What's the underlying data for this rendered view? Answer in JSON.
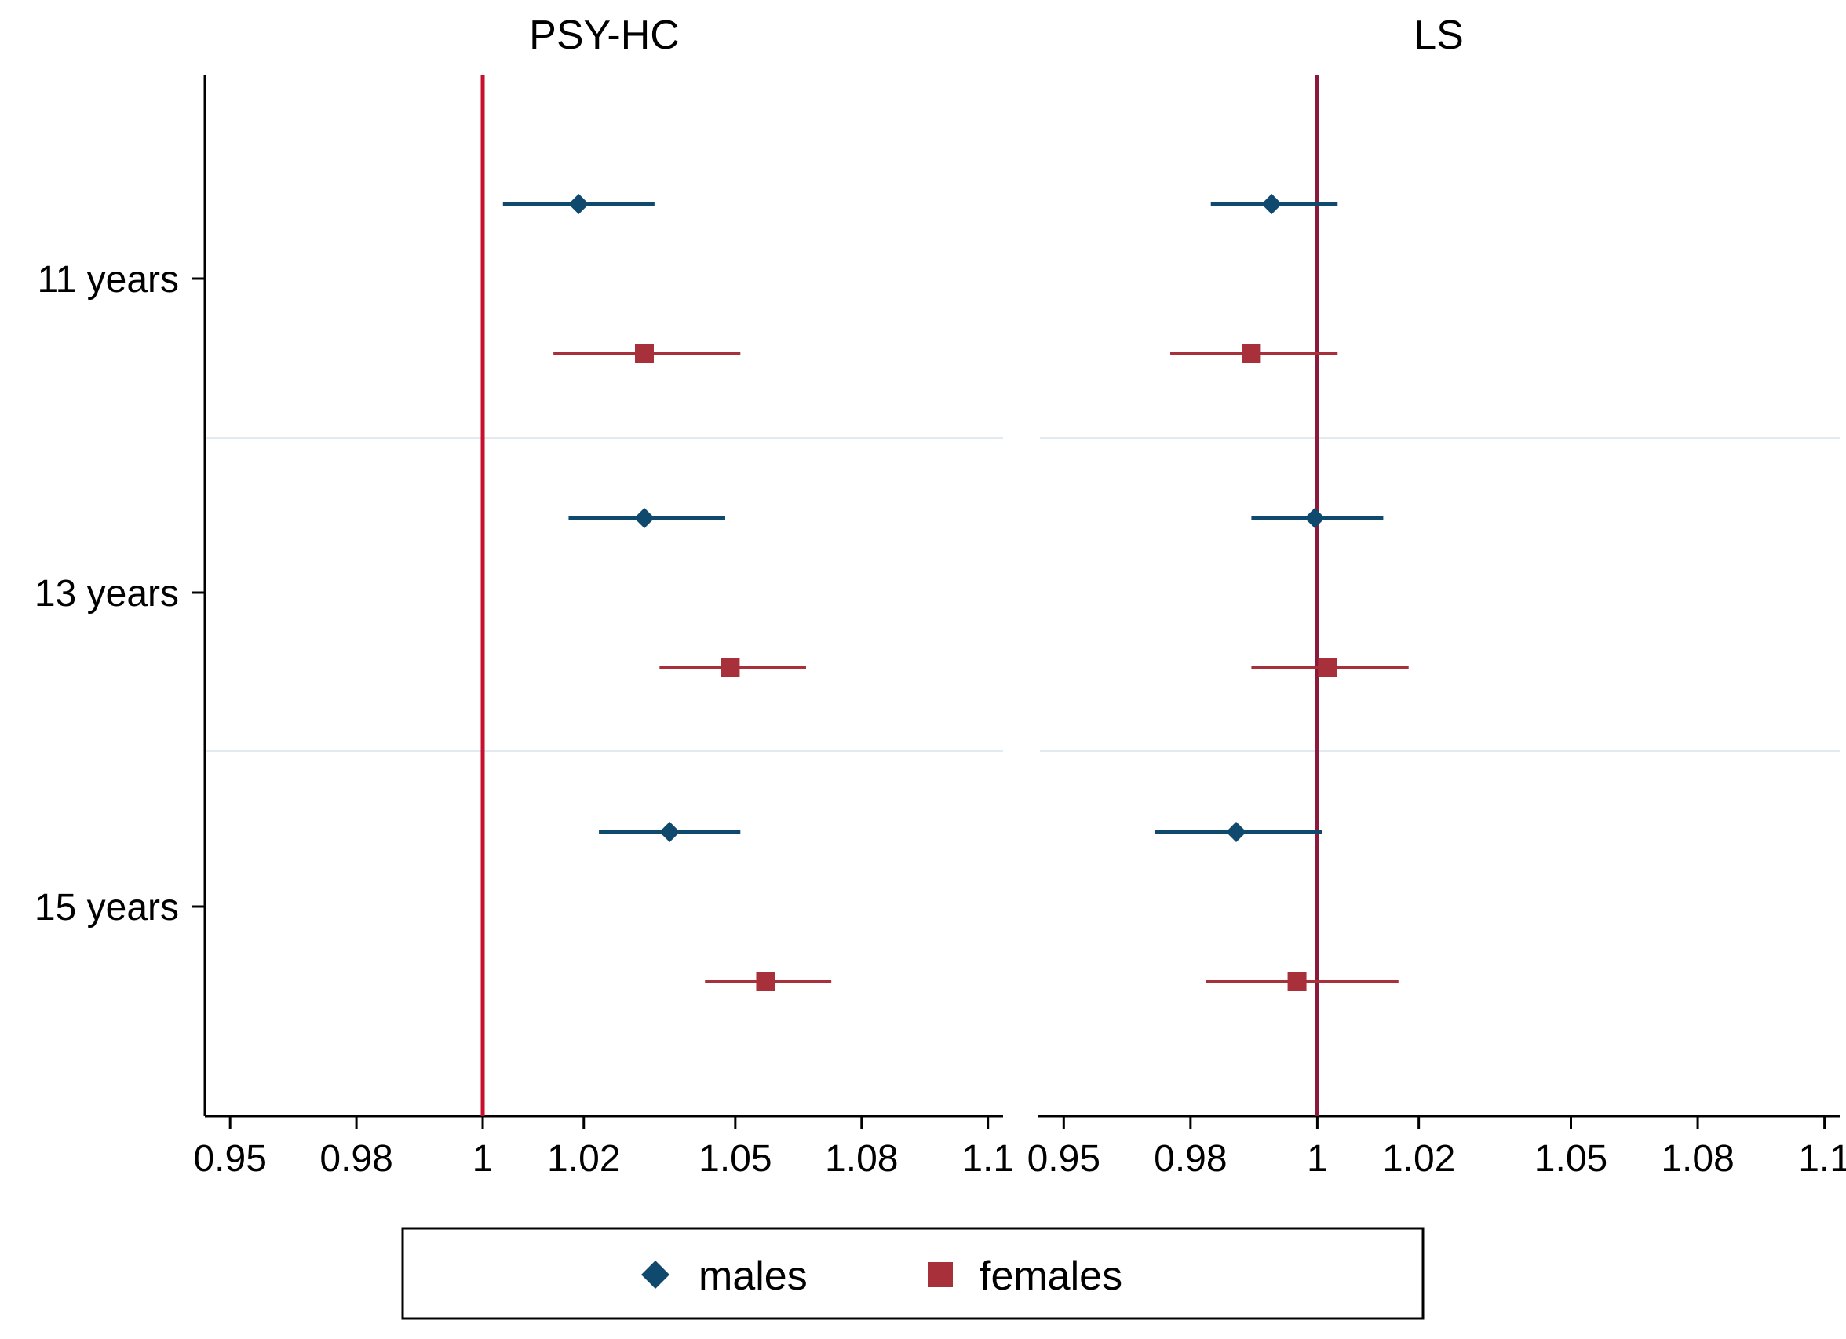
{
  "chart_data": {
    "type": "scatter",
    "subtype": "forest-plot",
    "categories": [
      "11 years",
      "13 years",
      "15 years"
    ],
    "colors": {
      "males": "#0f4a6e",
      "females": "#a8303a",
      "reference_line_left": "#c8102e",
      "reference_line_right": "#8b1a3a"
    },
    "legend": {
      "position": "bottom",
      "entries": [
        {
          "name": "males",
          "marker": "diamond",
          "color": "#0f4a6e"
        },
        {
          "name": "females",
          "marker": "square",
          "color": "#a8303a"
        }
      ]
    },
    "panels": [
      {
        "title": "PSY-HC",
        "xlim": [
          0.945,
          1.103
        ],
        "xticks": [
          0.95,
          0.975,
          1,
          1.02,
          1.05,
          1.075,
          1.1
        ],
        "xtick_labels": [
          "0.95",
          "0.98",
          "1",
          "1.02",
          "1.05",
          "1.08",
          "1.1"
        ],
        "reference_line": 1,
        "series": [
          {
            "name": "males",
            "points": [
              {
                "category": "11 years",
                "estimate": 1.019,
                "lower": 1.004,
                "upper": 1.034
              },
              {
                "category": "13 years",
                "estimate": 1.032,
                "lower": 1.017,
                "upper": 1.048
              },
              {
                "category": "15 years",
                "estimate": 1.037,
                "lower": 1.023,
                "upper": 1.051
              }
            ]
          },
          {
            "name": "females",
            "points": [
              {
                "category": "11 years",
                "estimate": 1.032,
                "lower": 1.014,
                "upper": 1.051
              },
              {
                "category": "13 years",
                "estimate": 1.049,
                "lower": 1.035,
                "upper": 1.064
              },
              {
                "category": "15 years",
                "estimate": 1.056,
                "lower": 1.044,
                "upper": 1.069
              }
            ]
          }
        ]
      },
      {
        "title": "LS",
        "xlim": [
          0.945,
          1.103
        ],
        "xticks": [
          0.95,
          0.975,
          1,
          1.02,
          1.05,
          1.075,
          1.1
        ],
        "xtick_labels": [
          "0.95",
          "0.98",
          "1",
          "1.02",
          "1.05",
          "1.08",
          "1.1"
        ],
        "reference_line": 1,
        "series": [
          {
            "name": "males",
            "points": [
              {
                "category": "11 years",
                "estimate": 0.991,
                "lower": 0.979,
                "upper": 1.004
              },
              {
                "category": "13 years",
                "estimate": 0.9995,
                "lower": 0.987,
                "upper": 1.013
              },
              {
                "category": "15 years",
                "estimate": 0.984,
                "lower": 0.968,
                "upper": 1.001
              }
            ]
          },
          {
            "name": "females",
            "points": [
              {
                "category": "11 years",
                "estimate": 0.987,
                "lower": 0.971,
                "upper": 1.004
              },
              {
                "category": "13 years",
                "estimate": 1.002,
                "lower": 0.987,
                "upper": 1.018
              },
              {
                "category": "15 years",
                "estimate": 0.996,
                "lower": 0.978,
                "upper": 1.016
              }
            ]
          }
        ]
      }
    ]
  }
}
